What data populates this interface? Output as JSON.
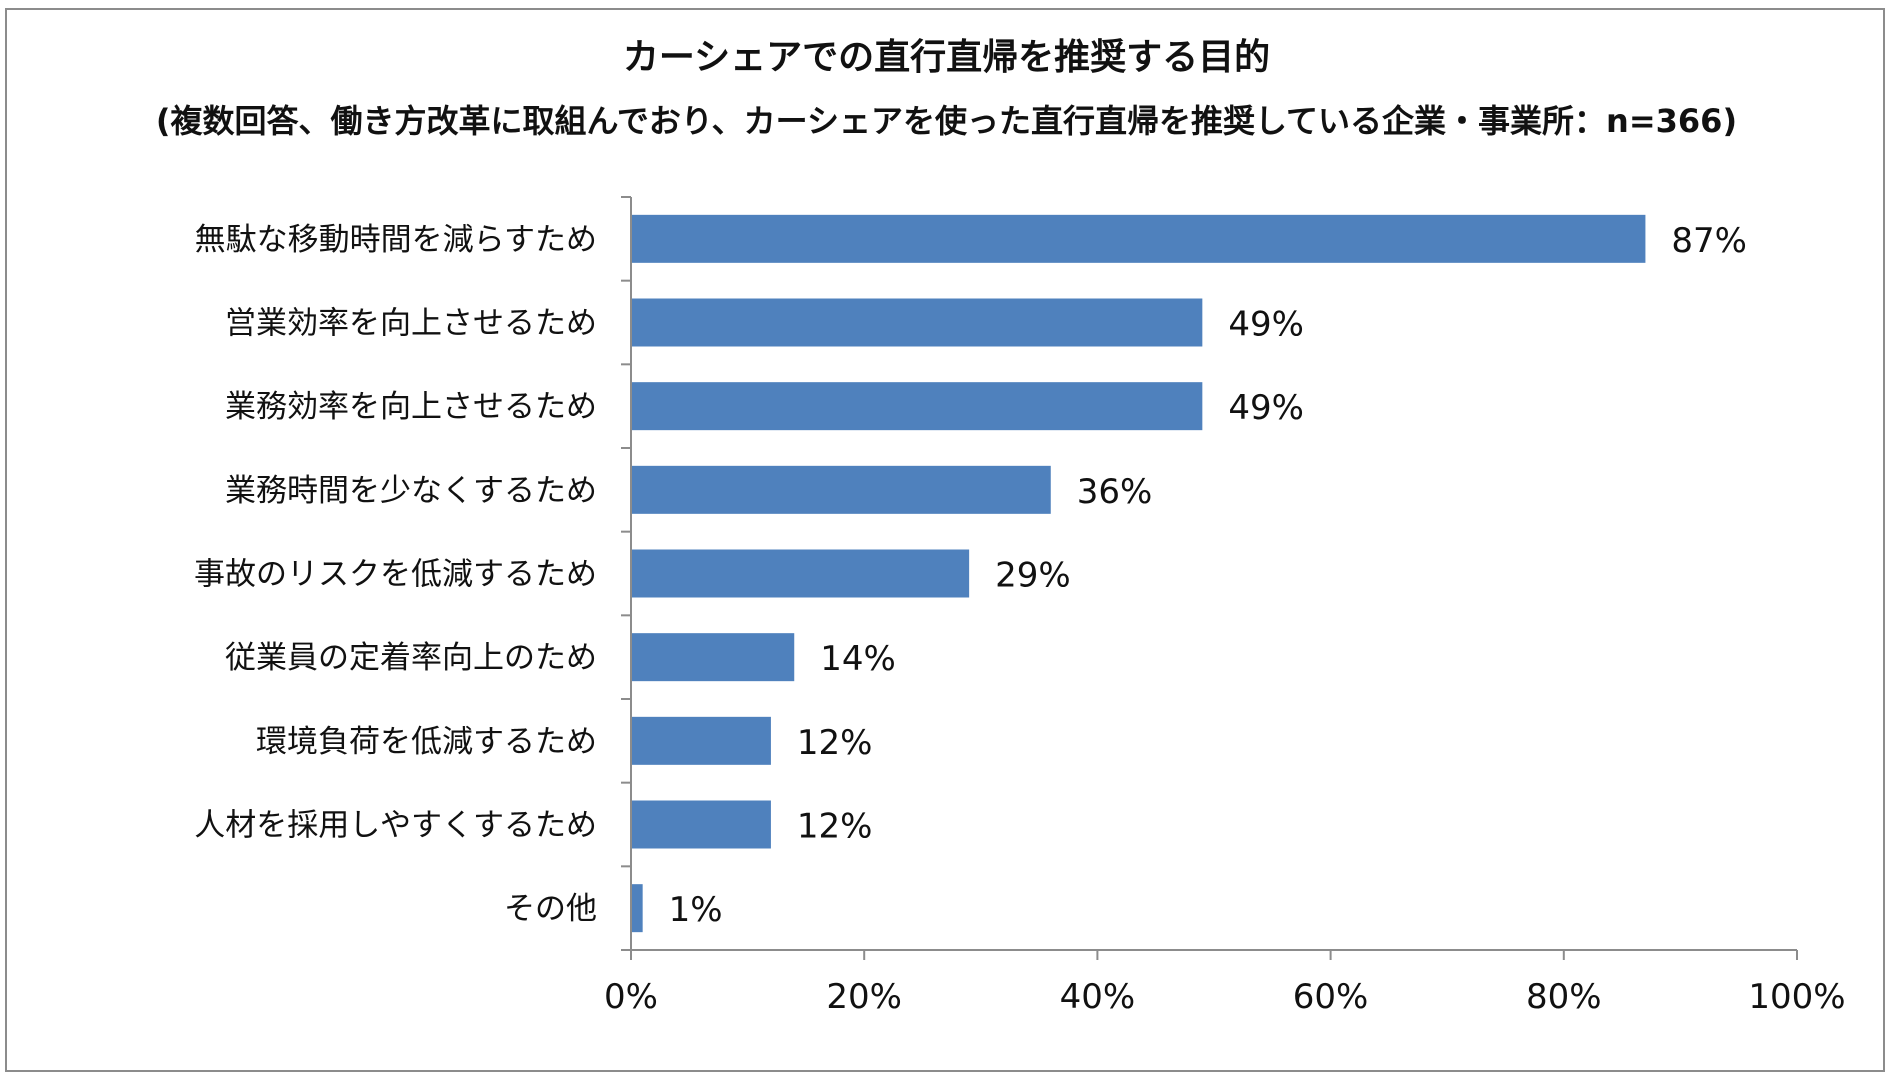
{
  "chart_data": {
    "type": "bar",
    "orientation": "horizontal",
    "title": "カーシェアでの直行直帰を推奨する目的",
    "subtitle": "(複数回答、働き方改革に取組んでおり、カーシェアを使った直行直帰を推奨している企業・事業所：n=366)",
    "categories": [
      "無駄な移動時間を減らすため",
      "営業効率を向上させるため",
      "業務効率を向上させるため",
      "業務時間を少なくするため",
      "事故のリスクを低減するため",
      "従業員の定着率向上のため",
      "環境負荷を低減するため",
      "人材を採用しやすくするため",
      "その他"
    ],
    "values": [
      87,
      49,
      49,
      36,
      29,
      14,
      12,
      12,
      1
    ],
    "value_labels": [
      "87%",
      "49%",
      "49%",
      "36%",
      "29%",
      "14%",
      "12%",
      "12%",
      "1%"
    ],
    "xlim": [
      0,
      100
    ],
    "xticks": [
      0,
      20,
      40,
      60,
      80,
      100
    ],
    "xtick_labels": [
      "0%",
      "20%",
      "40%",
      "60%",
      "80%",
      "100%"
    ],
    "grid": false,
    "legend": "none",
    "bar_color": "#4f81bd",
    "axis_color": "#8c8c8c"
  }
}
